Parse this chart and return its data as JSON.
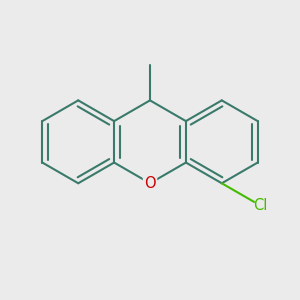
{
  "background_color": "#ebebeb",
  "bond_color": "#3a7a6a",
  "bond_width": 1.5,
  "O_color": "#cc0000",
  "Cl_color": "#44bb00",
  "label_fontsize": 10.5,
  "figsize": [
    3.0,
    3.0
  ],
  "dpi": 100
}
